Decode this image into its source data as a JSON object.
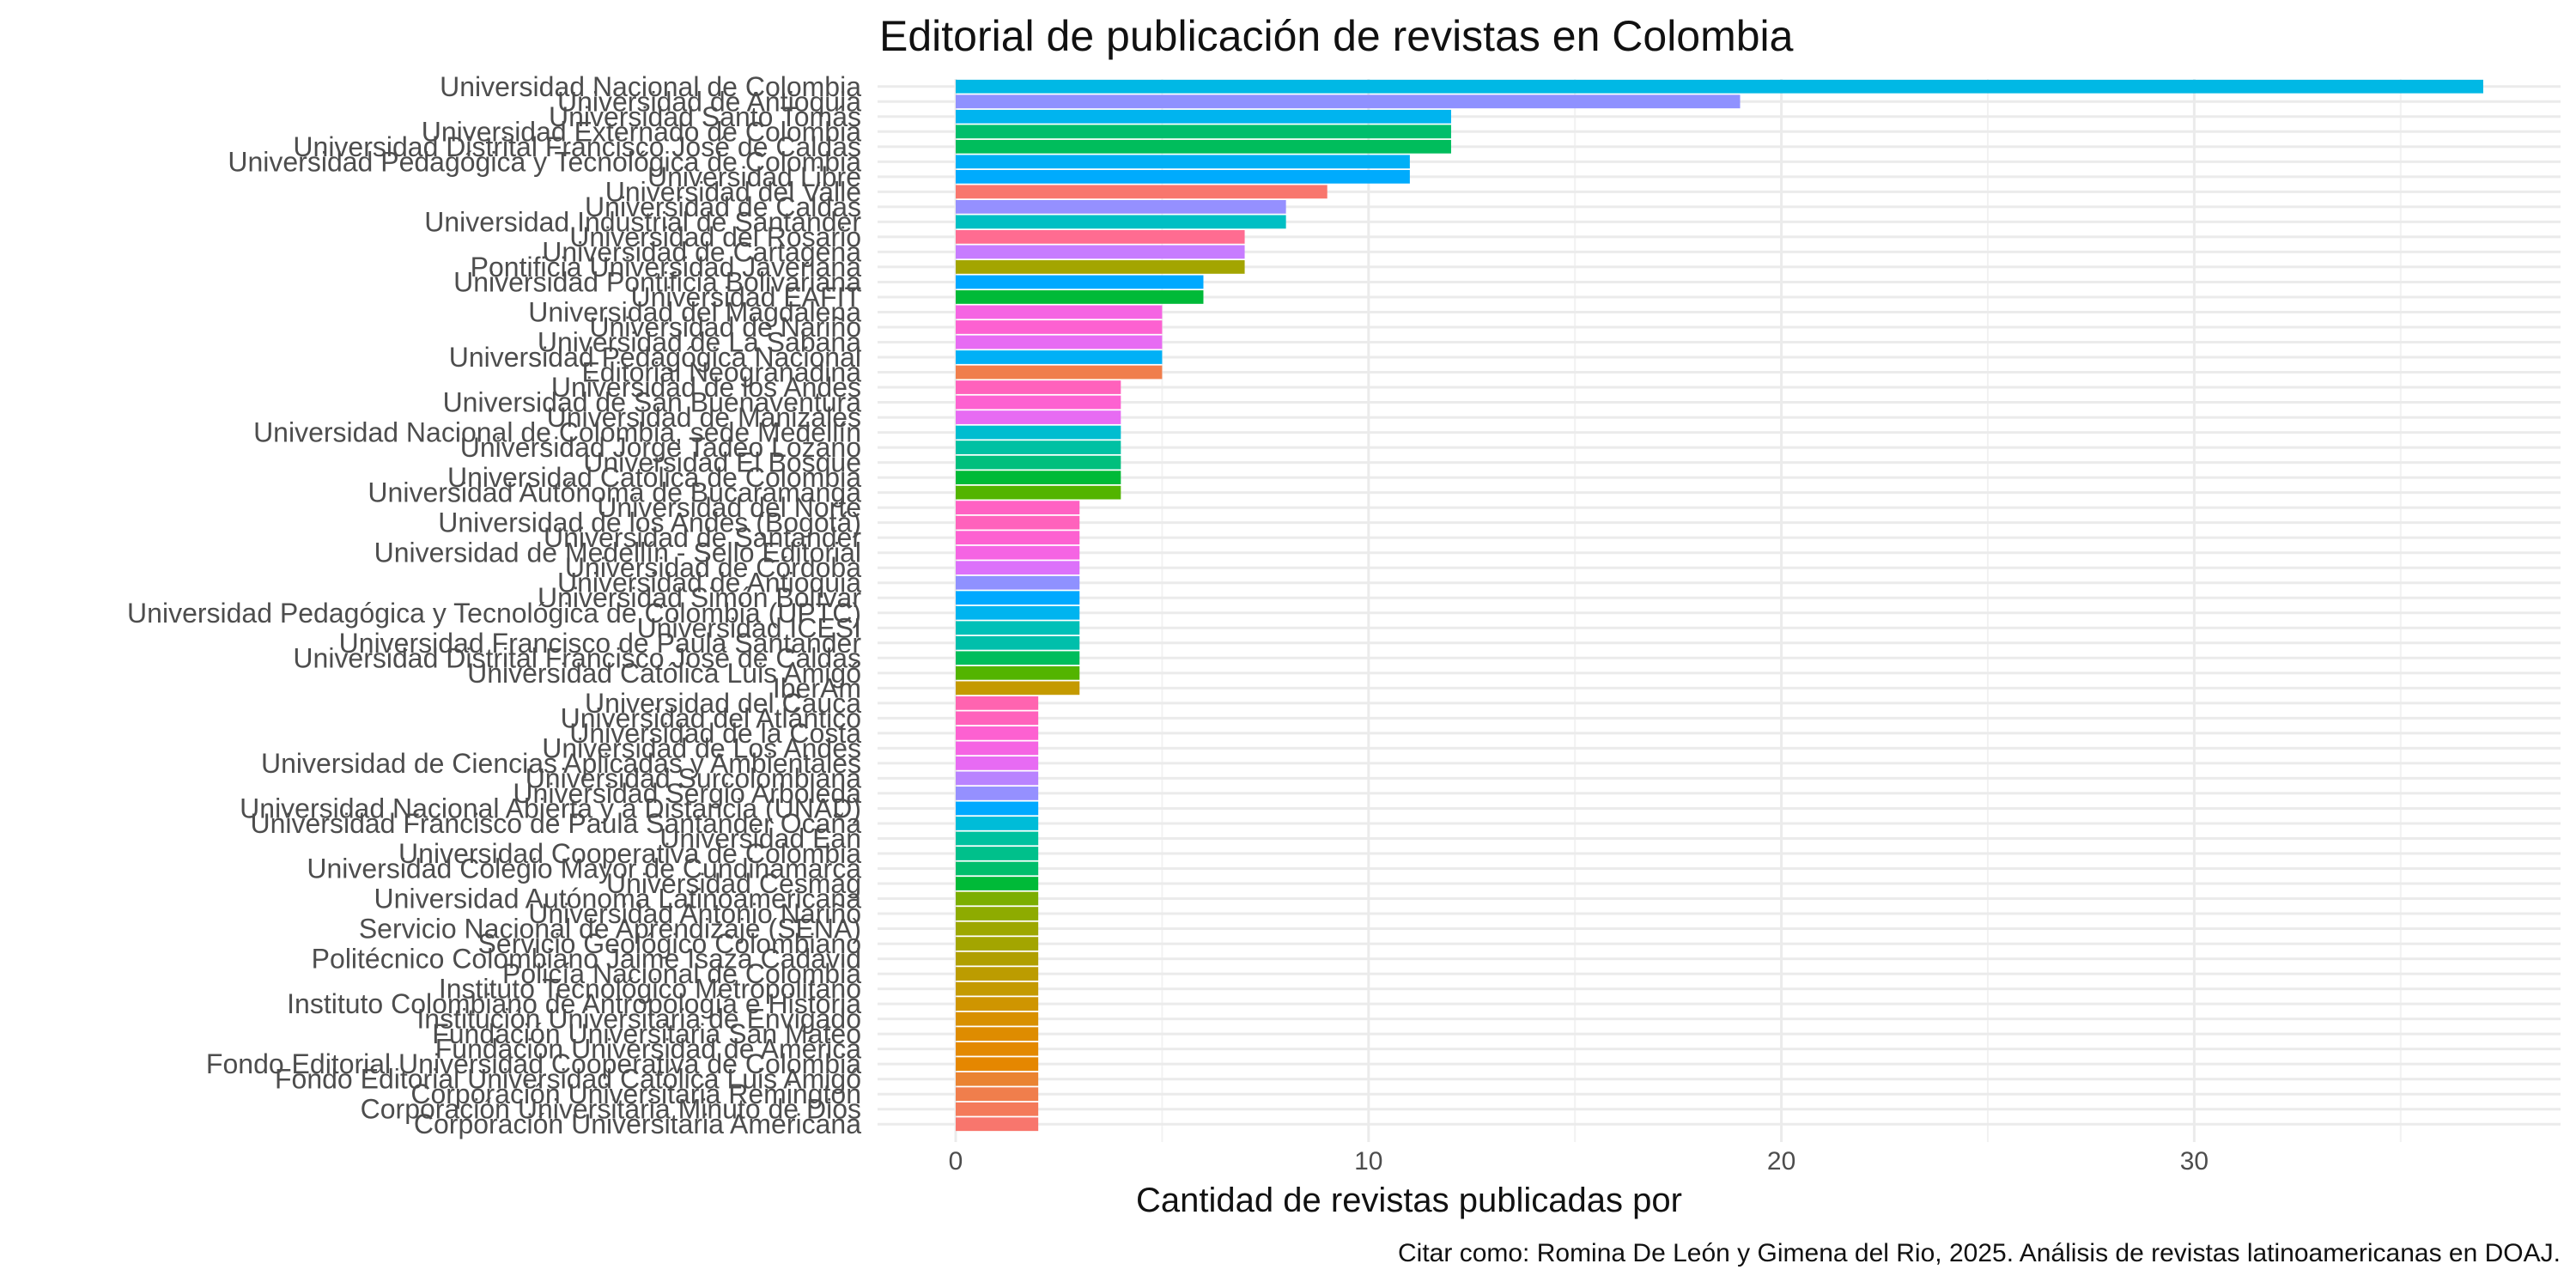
{
  "chart_data": {
    "type": "bar",
    "orientation": "horizontal",
    "title": "Editorial de publicación de revistas en Colombia",
    "xlabel": "Cantidad de revistas publicadas por",
    "caption": "Citar como: Romina De León y Gimena del Rio, 2025. Análisis de revistas latinoamericanas en DOAJ.",
    "xlim": [
      0,
      39
    ],
    "xticks": [
      0,
      10,
      20,
      30
    ],
    "grid": true,
    "legend": "none",
    "categories": [
      "Universidad Nacional de Colombia",
      "Universidad de Antioquia",
      "Universidad Santo Tomás",
      "Universidad Externado de Colombia",
      "Universidad Distrital Francisco José de Caldas",
      "Universidad Pedagógica y Tecnológica de Colombia",
      "Universidad Libre",
      "Universidad del Valle",
      "Universidad de Caldas",
      "Universidad Industrial de Santander",
      "Universidad del Rosario",
      "Universidad de Cartagena",
      "Pontificia Universidad Javeriana",
      "Universidad Pontificia Bolivariana",
      "Universidad EAFIT",
      "Universidad del Magdalena",
      "Universidad de Nariño",
      "Universidad de La Sabana",
      "Universidad Pedagógica Nacional",
      "Editorial Neogranadina",
      "Universidad de los Andes",
      "Universidad de San Buenaventura",
      "Universidad de Manizales",
      "Universidad Nacional de Colombia, sede Medellín",
      "Universidad Jorge Tadeo Lozano",
      "Universidad El Bosque",
      "Universidad Católica de Colombia",
      "Universidad Autónoma de Bucaramanga",
      "Universidad del Norte",
      "Universidad de los Andes (Bogotá)",
      "Universidad de Santander",
      "Universidad de Medellín - Sello Editorial",
      "Universidad de Córdoba",
      "Universidad de Antioquia",
      "Universidad Simón Bolívar",
      "Universidad Pedagógica y Tecnológica de Colombia (UPTC)",
      "Universidad ICESI",
      "Universidad Francisco de Paula Santander",
      "Universidad Distrital Francisco José de Caldas",
      "Universidad Católica Luis Amigó",
      "IberAm",
      "Universidad del Cauca",
      "Universidad del Atlántico",
      "Universidad de la Costa",
      "Universidad de Los Andes",
      "Universidad de Ciencias Aplicadas y Ambientales",
      "Universidad Surcolombiana",
      "Universidad Sergio Arboleda",
      "Universidad Nacional Abierta y a Distancia (UNAD)",
      "Universidad Francisco de Paula Santander Ocaña",
      "Universidad Ean",
      "Universidad Cooperativa de Colombia",
      "Universidad Colegio Mayor de Cundinamarca",
      "Universidad Cesmag",
      "Universidad Autónoma Latinoamericana",
      "Universidad Antonio Nariño",
      "Servicio Nacional de Aprendizaje (SENA)",
      "Servicio Geológico Colombiano",
      "Politécnico Colombiano Jaime Isaza Cadavid",
      "Policía Nacional de Colombia",
      "Instituto Tecnológico Metropolitano",
      "Instituto Colombiano de Antropología e Historia",
      "Institución Universitaria de Envigado",
      "Fundación Universitaria San Mateo",
      "Fundación Universidad de América",
      "Fondo Editorial Universidad Cooperativa de Colombia",
      "Fondo Editorial Universidad Católica Luis Amigó",
      "Corporación Universitaria Remington",
      "Corporación Universitaria Minuto de Dios",
      "Corporación Universitaria Americana"
    ],
    "values": [
      37,
      19,
      12,
      12,
      12,
      11,
      11,
      9,
      8,
      8,
      7,
      7,
      7,
      6,
      6,
      5,
      5,
      5,
      5,
      5,
      4,
      4,
      4,
      4,
      4,
      4,
      4,
      4,
      3,
      3,
      3,
      3,
      3,
      3,
      3,
      3,
      3,
      3,
      3,
      3,
      3,
      2,
      2,
      2,
      2,
      2,
      2,
      2,
      2,
      2,
      2,
      2,
      2,
      2,
      2,
      2,
      2,
      2,
      2,
      2,
      2,
      2,
      2,
      2,
      2,
      2,
      2,
      2,
      2,
      2
    ],
    "colors": [
      "#00B8E5",
      "#8F91FF",
      "#00B4EF",
      "#00BE6C",
      "#00BD5C",
      "#00B0F6",
      "#00ABFD",
      "#F8766D",
      "#9590FF",
      "#00BFC4",
      "#FF6C91",
      "#C77CFF",
      "#A3A500",
      "#00A9FF",
      "#00BA38",
      "#F564E3",
      "#FD61D1",
      "#E76BF3",
      "#00B0F6",
      "#F07E4C",
      "#FF62BC",
      "#FD61D1",
      "#E76BF3",
      "#00BDD0",
      "#00C1A3",
      "#00BF7D",
      "#00BA38",
      "#53B400",
      "#FF61C3",
      "#FF62BC",
      "#FD61D1",
      "#F564E3",
      "#DC71FA",
      "#8F91FF",
      "#00A9FF",
      "#00B4EF",
      "#00C0B8",
      "#00BFAB",
      "#00BD5C",
      "#53B400",
      "#C49A00",
      "#FF64B0",
      "#FF62BC",
      "#FD61D1",
      "#F564E3",
      "#E76BF3",
      "#B983FF",
      "#9590FF",
      "#00A9FF",
      "#00BCD8",
      "#00C19F",
      "#00C08B",
      "#00BE6C",
      "#00BA38",
      "#7CAE00",
      "#8EAB00",
      "#9DA700",
      "#A3A500",
      "#B09F00",
      "#BC9C00",
      "#C49A00",
      "#CF9500",
      "#D89000",
      "#DE8C00",
      "#E38900",
      "#E58700",
      "#EA8331",
      "#F07E4C",
      "#F47A5A",
      "#F8766D"
    ]
  }
}
